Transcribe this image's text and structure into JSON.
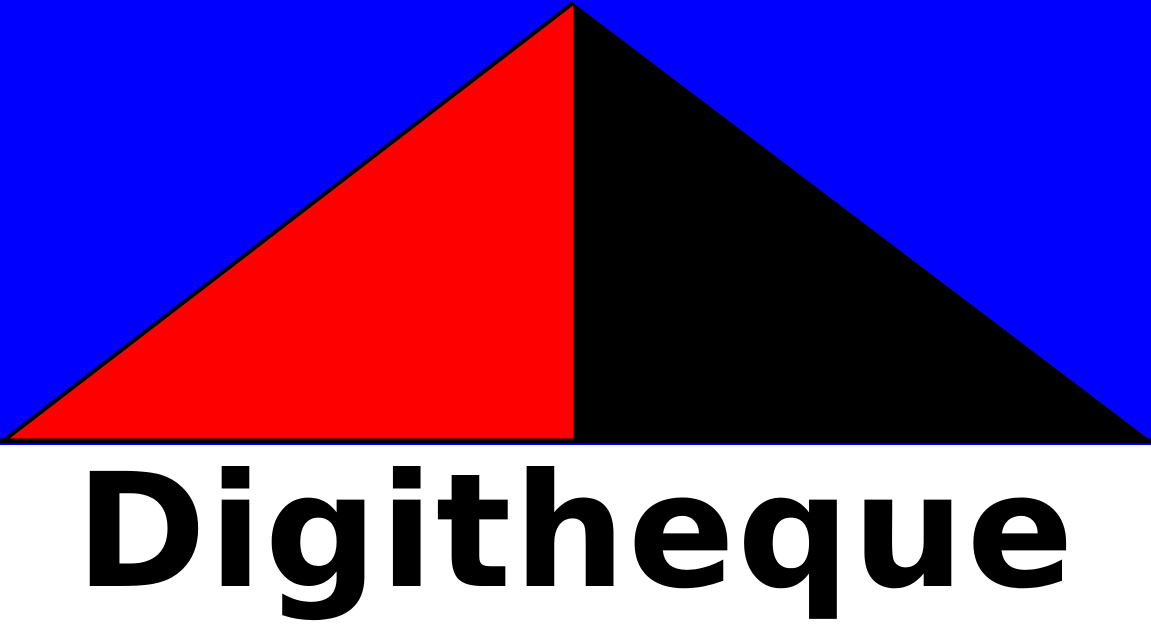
{
  "logo": {
    "wordmark": "Digitheque"
  },
  "colors": {
    "sky": "#0000ff",
    "left_face": "#ff0000",
    "right_face": "#000000",
    "text": "#000000",
    "background": "#ffffff"
  }
}
